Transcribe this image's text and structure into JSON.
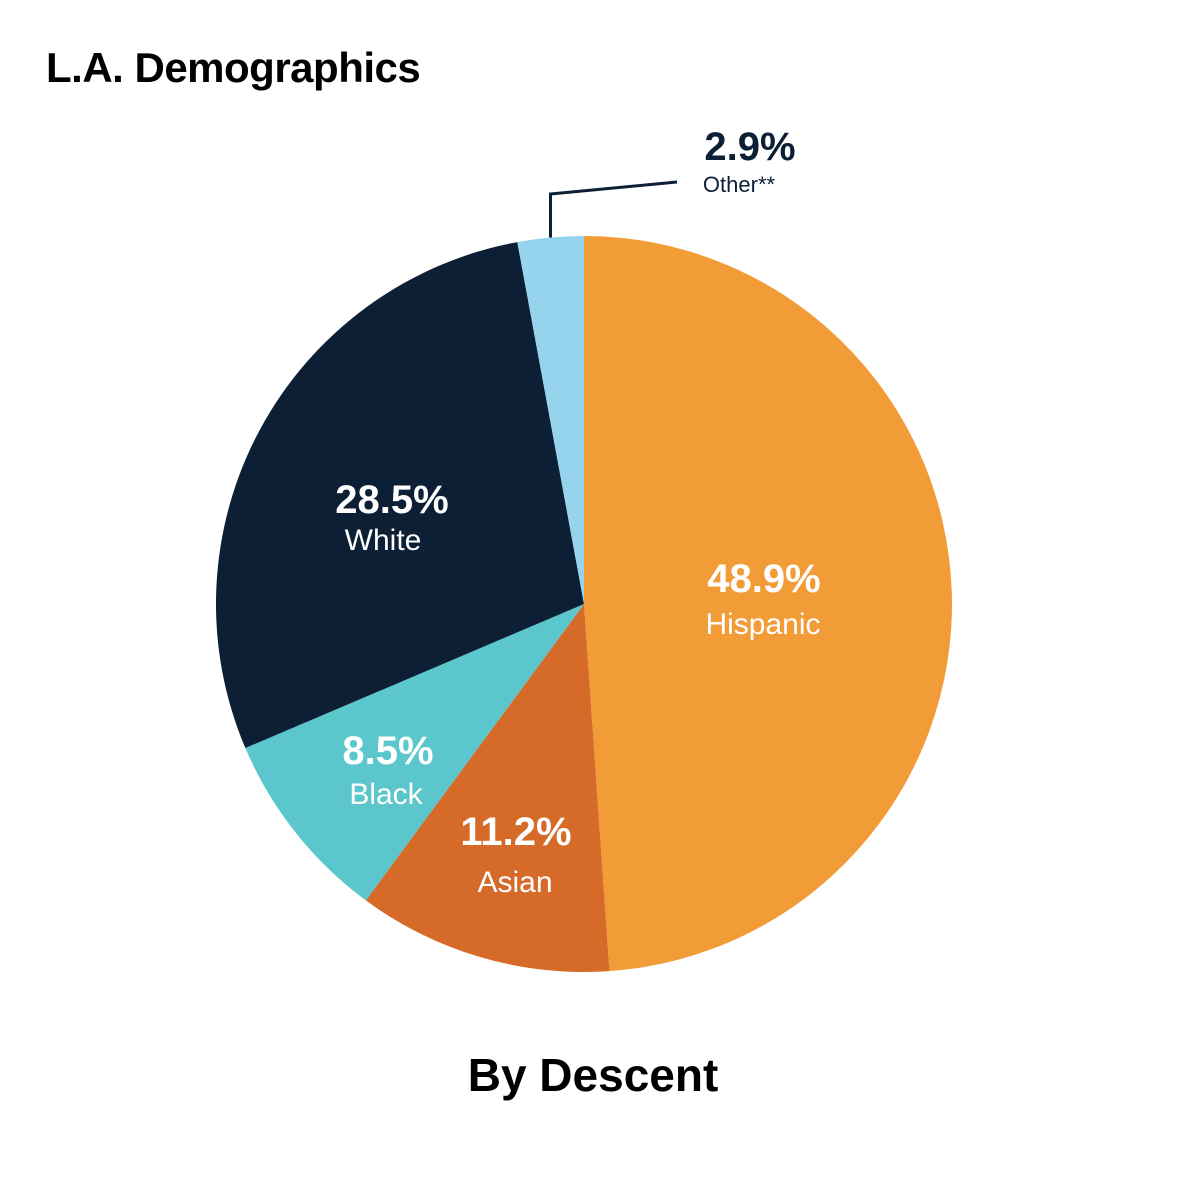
{
  "chart_data": {
    "type": "pie",
    "title": "L.A. Demographics",
    "subtitle": "By Descent",
    "slices": [
      {
        "label": "Hispanic",
        "value": 48.9,
        "value_label": "48.9%",
        "color": "#F29C38"
      },
      {
        "label": "Asian",
        "value": 11.2,
        "value_label": "11.2%",
        "color": "#D56A29"
      },
      {
        "label": "Black",
        "value": 8.5,
        "value_label": "8.5%",
        "color": "#5BC6CB"
      },
      {
        "label": "White",
        "value": 28.5,
        "value_label": "28.5%",
        "color": "#0C1F35"
      },
      {
        "label": "Other**",
        "value": 2.9,
        "value_label": "2.9%",
        "color": "#96D4EE"
      }
    ],
    "start_angle": "12 o'clock",
    "direction": "clockwise",
    "legend": "none",
    "label_colors": {
      "inside": "#FFFFFF",
      "outside": "#0C1F35"
    }
  }
}
